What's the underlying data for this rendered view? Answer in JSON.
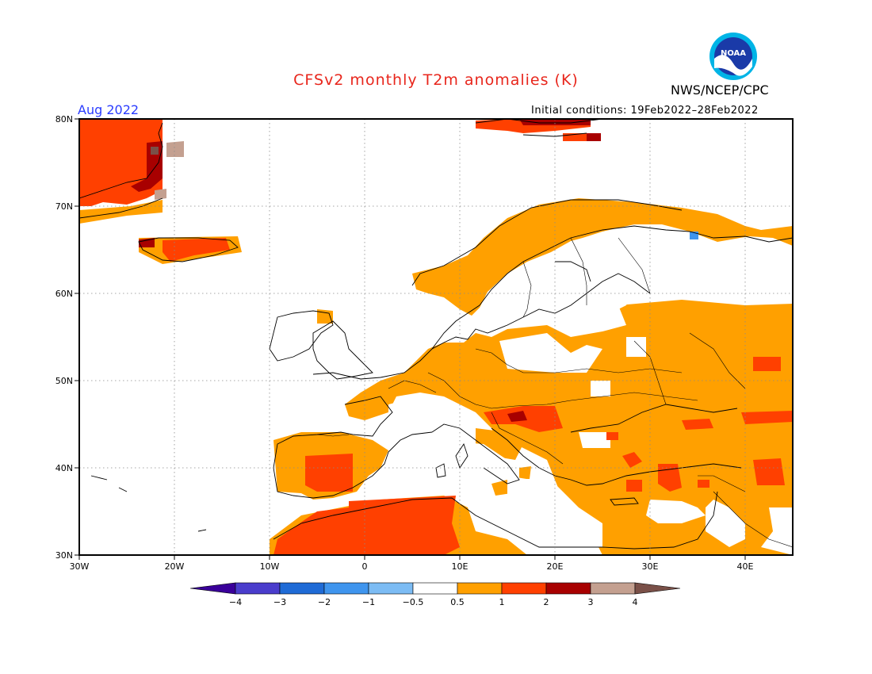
{
  "title": "CFSv2 monthly T2m anomalies (K)",
  "agency": "NWS/NCEP/CPC",
  "period": "Aug 2022",
  "initial_conditions": "Initial conditions: 19Feb2022–28Feb2022",
  "logo_text": "NOAA",
  "map": {
    "lon_range": [
      -30,
      45
    ],
    "lat_range": [
      30,
      80
    ],
    "lat_labels": [
      "80N",
      "70N",
      "60N",
      "50N",
      "40N",
      "30N"
    ],
    "lon_labels": [
      "30W",
      "20W",
      "10W",
      "0",
      "10E",
      "20E",
      "30E",
      "40E"
    ]
  },
  "colorbar": {
    "ticks": [
      "−4",
      "−3",
      "−2",
      "−1",
      "−0.5",
      "0.5",
      "1",
      "2",
      "3",
      "4"
    ],
    "colors": [
      "#3a009a",
      "#4a3dcc",
      "#1f6bd6",
      "#3f95ee",
      "#7cbcf4",
      "#ffffff",
      "#ffa000",
      "#ff4000",
      "#a80000",
      "#c4a090",
      "#7a5048"
    ]
  }
}
